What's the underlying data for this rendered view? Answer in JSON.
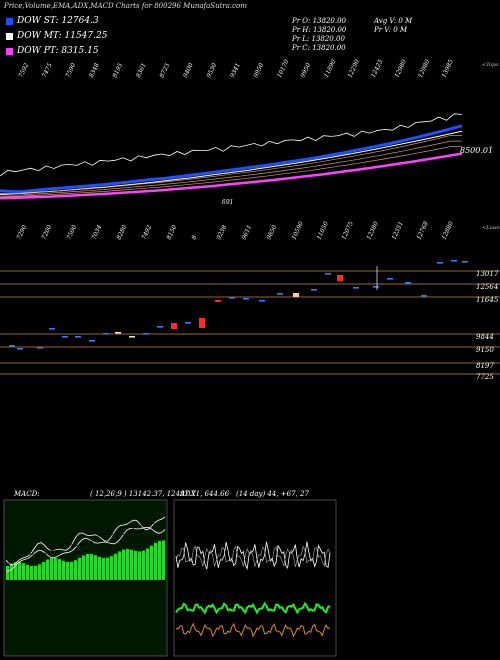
{
  "header": {
    "title": "Price,Volume,EMA,ADX,MACD Charts for 800296  MunafaSutra.com"
  },
  "legend": [
    {
      "label": "DOW ST: 12764.3",
      "color": "#1f4fff"
    },
    {
      "label": "DOW MT: 11547.25",
      "color": "#ffffff"
    },
    {
      "label": "DOW PT: 8315.15",
      "color": "#ff40ff"
    }
  ],
  "price_box": {
    "open": "Pr   O: 13820.00",
    "high": "Pr   H: 13820.00",
    "low": "Pr   L: 13820.00",
    "close": "Pr   C: 13820.00",
    "avg_volume": "Avg V: 0   M",
    "volume": "Pr   V: 0   M"
  },
  "top_labels": [
    "7592",
    "7475",
    "7590",
    "8348",
    "8195",
    "8361",
    "8725",
    "9400",
    "9530",
    "9341",
    "9950",
    "10170",
    "9950",
    "11890",
    "12290",
    "12425",
    "12980",
    "12980",
    "13985"
  ],
  "top_right_label": "<Topo",
  "bottom_labels": [
    "7290",
    "7200",
    "7500",
    "7034",
    "8280",
    "7492",
    "8150",
    "8",
    "9238",
    "9611",
    "9850",
    "10590",
    "11050",
    "12075",
    "12380",
    "12351",
    "12768",
    "12880"
  ],
  "bottom_right_label": "<Lowo",
  "ema_value_label": "8500.01",
  "ema_mid_label": "691",
  "chart_data": [
    {
      "type": "line",
      "title": "Price, EMA",
      "series": [
        {
          "name": "",
          "values": [
            7480,
            7440,
            7430,
            7500,
            7560,
            7600,
            7650,
            7700,
            7750,
            7800,
            7870,
            7930,
            8000,
            8060,
            8120,
            8190,
            8260,
            8340,
            8420,
            8500,
            8580,
            8660,
            8740,
            8830,
            8920,
            9010,
            9100,
            9200,
            9310,
            9420,
            9540,
            9660,
            9780,
            9900,
            10040,
            10180,
            10330,
            10480,
            10640,
            10800
          ]
        },
        {
          "name": "",
          "values": [
            7300,
            7320,
            7350,
            7390,
            7430,
            7470,
            7520,
            7570,
            7620,
            7670,
            7730,
            7790,
            7850,
            7920,
            7990,
            8060,
            8130,
            8210,
            8290,
            8370,
            8450,
            8530,
            8620,
            8710,
            8800,
            8890,
            8990,
            9090,
            9190,
            9300,
            9410,
            9520,
            9640,
            9760,
            9880,
            10000,
            10130,
            10260,
            10390,
            10520
          ]
        },
        {
          "name": "",
          "values": [
            7100,
            7110,
            7130,
            7150,
            7170,
            7200,
            7230,
            7260,
            7290,
            7320,
            7360,
            7400,
            7440,
            7480,
            7520,
            7570,
            7620,
            7670,
            7720,
            7780,
            7840,
            7900,
            7960,
            8020,
            8090,
            8160,
            8230,
            8300,
            8380,
            8460,
            8540,
            8620,
            8710,
            8800,
            8890,
            8980,
            9080,
            9180,
            9280,
            9380
          ]
        }
      ]
    },
    {
      "type": "bar",
      "title": "Price levels",
      "y_ticks": [
        "13017",
        "12564",
        "11645",
        "9844",
        "9150",
        "8197",
        "7725"
      ]
    },
    {
      "type": "line",
      "title": "MACD",
      "label": "MACD:",
      "params": "( 12,26,9 ) 13142.37, 12497.71, 644.66"
    },
    {
      "type": "line",
      "title": "ADX",
      "label": "ADX",
      "params": "(14 day) 44, +67, 27"
    }
  ]
}
